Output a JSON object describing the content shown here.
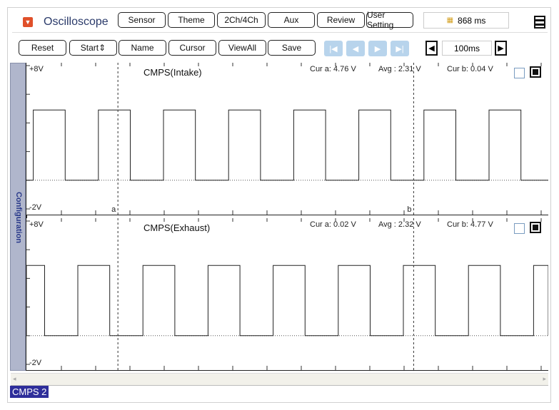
{
  "app": {
    "title": "Oscilloscope",
    "menu_icon": "dropdown-icon",
    "accent": "#e0502a"
  },
  "toolbar1": {
    "buttons": [
      "Sensor",
      "Theme",
      "2Ch/4Ch",
      "Aux",
      "Review",
      "User Setting"
    ],
    "time_display": "868 ms",
    "time_icon": "battery-icon"
  },
  "toolbar2": {
    "buttons": [
      "Reset",
      "Start",
      "Name",
      "Cursor",
      "ViewAll",
      "Save"
    ],
    "timebase": "100ms"
  },
  "sidebar": {
    "label": "Configuration"
  },
  "channels": [
    {
      "title": "CMPS(Intake)",
      "ymax_label": "+8V",
      "ymin_label": "-2V",
      "cur_a": "Cur a: 4.76 V",
      "avg": "Avg  : 2.31 V",
      "cur_b": "Cur b: 0.04 V",
      "cursor_a": "a",
      "cursor_b": "b"
    },
    {
      "title": "CMPS(Exhaust)",
      "ymax_label": "+8V",
      "ymin_label": "-2V",
      "cur_a": "Cur a: 0.02 V",
      "avg": "Avg  : 2.32 V",
      "cur_b": "Cur b: 4.77 V"
    }
  ],
  "status": {
    "label": "CMPS 2",
    "color": "#2e2e9a"
  },
  "chart_data": [
    {
      "type": "line",
      "title": "CMPS(Intake)",
      "ylim": [
        -2,
        8
      ],
      "x_unit": "ms",
      "x_division_ms": 100,
      "high_v": 4.9,
      "low_v": 0.0,
      "period_ms": 190,
      "duty": 0.49,
      "first_rise_ms": 20,
      "cursor_a_ms": 267,
      "cursor_b_ms": 1130
    },
    {
      "type": "line",
      "title": "CMPS(Exhaust)",
      "ylim": [
        -2,
        8
      ],
      "x_unit": "ms",
      "x_division_ms": 100,
      "high_v": 4.9,
      "low_v": 0.0,
      "period_ms": 190,
      "duty": 0.49,
      "first_rise_ms": 150,
      "cursor_a_ms": 267,
      "cursor_b_ms": 1130
    }
  ]
}
